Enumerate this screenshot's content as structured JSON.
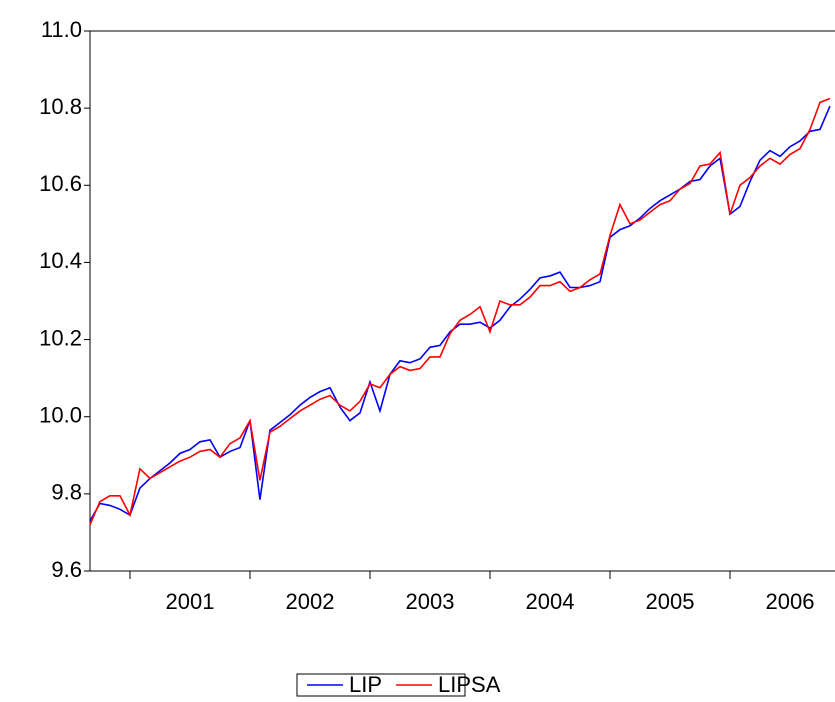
{
  "chart_data": {
    "type": "line",
    "x": [
      2000.667,
      2000.75,
      2000.833,
      2000.917,
      2001,
      2001.083,
      2001.167,
      2001.25,
      2001.333,
      2001.417,
      2001.5,
      2001.583,
      2001.667,
      2001.75,
      2001.833,
      2001.917,
      2002,
      2002.083,
      2002.167,
      2002.25,
      2002.333,
      2002.417,
      2002.5,
      2002.583,
      2002.667,
      2002.75,
      2002.833,
      2002.917,
      2003,
      2003.083,
      2003.167,
      2003.25,
      2003.333,
      2003.417,
      2003.5,
      2003.583,
      2003.667,
      2003.75,
      2003.833,
      2003.917,
      2004,
      2004.083,
      2004.167,
      2004.25,
      2004.333,
      2004.417,
      2004.5,
      2004.583,
      2004.667,
      2004.75,
      2004.833,
      2004.917,
      2005,
      2005.083,
      2005.167,
      2005.25,
      2005.333,
      2005.417,
      2005.5,
      2005.583,
      2005.667,
      2005.75,
      2005.833,
      2005.917,
      2006,
      2006.083,
      2006.167,
      2006.25,
      2006.333,
      2006.417,
      2006.5,
      2006.583,
      2006.667,
      2006.75,
      2006.833
    ],
    "series": [
      {
        "name": "LIP",
        "color": "#0000ff",
        "values": [
          9.73,
          9.775,
          9.77,
          9.76,
          9.745,
          9.815,
          9.84,
          9.86,
          9.88,
          9.905,
          9.915,
          9.935,
          9.94,
          9.895,
          9.91,
          9.92,
          9.99,
          9.785,
          9.965,
          9.985,
          10.005,
          10.03,
          10.05,
          10.065,
          10.075,
          10.025,
          9.99,
          10.01,
          10.09,
          10.015,
          10.11,
          10.145,
          10.14,
          10.15,
          10.18,
          10.185,
          10.22,
          10.24,
          10.24,
          10.245,
          10.23,
          10.25,
          10.285,
          10.305,
          10.33,
          10.36,
          10.365,
          10.375,
          10.335,
          10.335,
          10.34,
          10.35,
          10.465,
          10.485,
          10.495,
          10.515,
          10.54,
          10.56,
          10.575,
          10.59,
          10.61,
          10.615,
          10.65,
          10.67,
          10.525,
          10.545,
          10.61,
          10.665,
          10.69,
          10.675,
          10.7,
          10.715,
          10.74,
          10.745,
          10.805
        ]
      },
      {
        "name": "LIPSA",
        "color": "#ff0000",
        "values": [
          9.72,
          9.78,
          9.795,
          9.795,
          9.745,
          9.865,
          9.84,
          9.855,
          9.87,
          9.885,
          9.895,
          9.91,
          9.915,
          9.895,
          9.93,
          9.945,
          9.99,
          9.835,
          9.96,
          9.975,
          9.995,
          10.015,
          10.03,
          10.045,
          10.055,
          10.03,
          10.015,
          10.04,
          10.085,
          10.075,
          10.11,
          10.13,
          10.12,
          10.125,
          10.155,
          10.155,
          10.215,
          10.25,
          10.265,
          10.285,
          10.22,
          10.3,
          10.29,
          10.29,
          10.31,
          10.34,
          10.34,
          10.35,
          10.325,
          10.335,
          10.355,
          10.37,
          10.47,
          10.55,
          10.5,
          10.51,
          10.53,
          10.55,
          10.56,
          10.59,
          10.605,
          10.65,
          10.655,
          10.685,
          10.525,
          10.6,
          10.62,
          10.65,
          10.67,
          10.655,
          10.68,
          10.695,
          10.745,
          10.815,
          10.825
        ]
      }
    ],
    "xlim": [
      2000.667,
      2006.875
    ],
    "xticks": [
      {
        "value": 2001,
        "label": "2001"
      },
      {
        "value": 2002,
        "label": "2002"
      },
      {
        "value": 2003,
        "label": "2003"
      },
      {
        "value": 2004,
        "label": "2004"
      },
      {
        "value": 2005,
        "label": "2005"
      },
      {
        "value": 2006,
        "label": "2006"
      }
    ],
    "ylim": [
      9.6,
      11
    ],
    "yticks": [
      {
        "value": 9.6,
        "label": "9.6"
      },
      {
        "value": 9.8,
        "label": "9.8"
      },
      {
        "value": 10,
        "label": "10.0"
      },
      {
        "value": 10.2,
        "label": "10.2"
      },
      {
        "value": 10.4,
        "label": "10.4"
      },
      {
        "value": 10.6,
        "label": "10.6"
      },
      {
        "value": 10.8,
        "label": "10.8"
      },
      {
        "value": 11,
        "label": "11.0"
      }
    ],
    "legend": "bottom"
  }
}
